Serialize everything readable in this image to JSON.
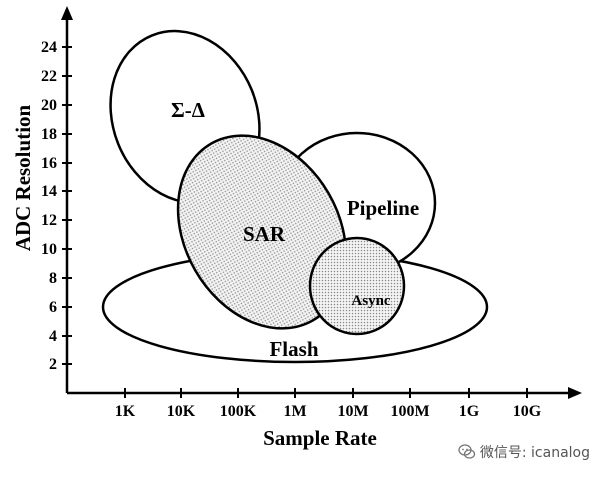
{
  "diagram": {
    "y_axis_label": "ADC Resolution",
    "x_axis_label": "Sample Rate",
    "y_ticks": [
      "2",
      "4",
      "6",
      "8",
      "10",
      "12",
      "14",
      "16",
      "18",
      "20",
      "22",
      "24"
    ],
    "x_ticks": [
      "1K",
      "10K",
      "100K",
      "1M",
      "10M",
      "100M",
      "1G",
      "10G"
    ],
    "regions": {
      "sigma_delta": "Σ-Δ",
      "sar": "SAR",
      "pipeline": "Pipeline",
      "async": "Async",
      "flash": "Flash"
    }
  },
  "watermark": {
    "text": "微信号: icanalog",
    "icon": "wechat-icon"
  },
  "colors": {
    "stroke": "#000000",
    "background": "#ffffff",
    "dot_fill": "#d9d9d9"
  }
}
